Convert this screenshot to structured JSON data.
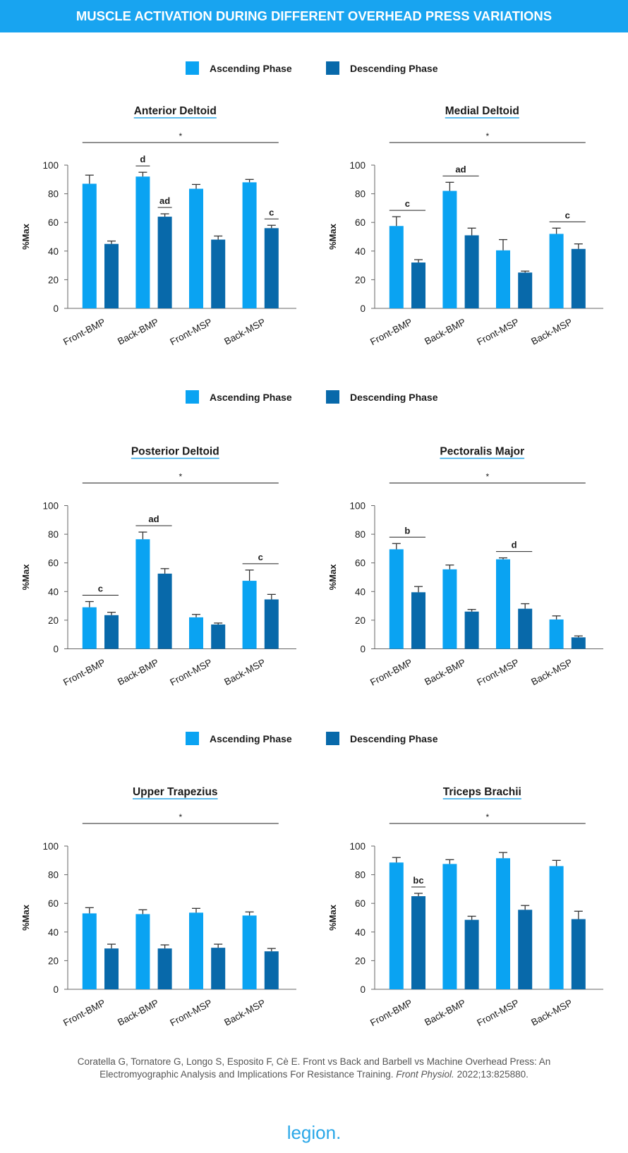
{
  "title": "MUSCLE ACTIVATION DURING DIFFERENT OVERHEAD PRESS VARIATIONS",
  "citation": {
    "lines": [
      "Coratella G, Tornatore G, Longo S, Esposito F, Cè E. Front vs Back and Barbell vs Machine Overhead Press: An",
      "Electromyographic Analysis and Implications For Resistance Training."
    ],
    "journal": "Front Physiol.",
    "details": "2022;13:825880."
  },
  "logo": "legion.",
  "chart_data": [
    {
      "type": "bar",
      "title": "Anterior Deltoid",
      "ylabel": "%Max",
      "significance": "*",
      "categories": [
        "Front-BMP",
        "Back-BMP",
        "Front-MSP",
        "Back-MSP"
      ],
      "series": [
        {
          "name": "Ascending Phase",
          "color": "#0aa3f2",
          "values": [
            87,
            92,
            83.5,
            88
          ],
          "errors": [
            6,
            3,
            3,
            2
          ]
        },
        {
          "name": "Descending Phase",
          "color": "#0869aa",
          "values": [
            45,
            64,
            48,
            56
          ],
          "errors": [
            2,
            2,
            2.5,
            2
          ]
        }
      ],
      "annotations": [
        {
          "text": "d",
          "category": "Back-BMP",
          "series": "Ascending Phase"
        },
        {
          "text": "ad",
          "category": "Back-BMP",
          "series": "Descending Phase"
        },
        {
          "text": "c",
          "category": "Back-MSP",
          "series": "Descending Phase"
        }
      ],
      "ylim": [
        0,
        100
      ],
      "yticks": [
        0,
        20,
        40,
        60,
        80,
        100
      ]
    },
    {
      "type": "bar",
      "title": "Medial Deltoid",
      "ylabel": "%Max",
      "significance": "*",
      "categories": [
        "Front-BMP",
        "Back-BMP",
        "Front-MSP",
        "Back-MSP"
      ],
      "series": [
        {
          "name": "Ascending Phase",
          "color": "#0aa3f2",
          "values": [
            57.5,
            82,
            40.5,
            52
          ],
          "errors": [
            6.5,
            6,
            7.5,
            4
          ]
        },
        {
          "name": "Descending Phase",
          "color": "#0869aa",
          "values": [
            32,
            51,
            25,
            41.5
          ],
          "errors": [
            2,
            5,
            1,
            3.5
          ]
        }
      ],
      "annotations": [
        {
          "text": "c",
          "category": "Front-BMP"
        },
        {
          "text": "ad",
          "category": "Back-BMP"
        },
        {
          "text": "c",
          "category": "Back-MSP"
        }
      ],
      "ylim": [
        0,
        100
      ],
      "yticks": [
        0,
        20,
        40,
        60,
        80,
        100
      ]
    },
    {
      "type": "bar",
      "title": "Posterior Deltoid",
      "ylabel": "%Max",
      "significance": "*",
      "categories": [
        "Front-BMP",
        "Back-BMP",
        "Front-MSP",
        "Back-MSP"
      ],
      "series": [
        {
          "name": "Ascending Phase",
          "color": "#0aa3f2",
          "values": [
            29,
            76.5,
            22,
            47.5
          ],
          "errors": [
            4,
            5,
            2,
            7.5
          ]
        },
        {
          "name": "Descending Phase",
          "color": "#0869aa",
          "values": [
            23.5,
            52.5,
            17,
            34.5
          ],
          "errors": [
            2,
            3.5,
            1,
            3.5
          ]
        }
      ],
      "annotations": [
        {
          "text": "c",
          "category": "Front-BMP"
        },
        {
          "text": "ad",
          "category": "Back-BMP"
        },
        {
          "text": "c",
          "category": "Back-MSP"
        }
      ],
      "ylim": [
        0,
        100
      ],
      "yticks": [
        0,
        20,
        40,
        60,
        80,
        100
      ]
    },
    {
      "type": "bar",
      "title": "Pectoralis Major",
      "ylabel": "%Max",
      "significance": "*",
      "categories": [
        "Front-BMP",
        "Back-BMP",
        "Front-MSP",
        "Back-MSP"
      ],
      "series": [
        {
          "name": "Ascending Phase",
          "color": "#0aa3f2",
          "values": [
            69.5,
            55.5,
            62.5,
            20.5
          ],
          "errors": [
            4,
            3,
            1,
            2.5
          ]
        },
        {
          "name": "Descending Phase",
          "color": "#0869aa",
          "values": [
            39.5,
            26,
            28,
            8
          ],
          "errors": [
            4,
            1.5,
            3.5,
            1
          ]
        }
      ],
      "annotations": [
        {
          "text": "b",
          "category": "Front-BMP"
        },
        {
          "text": "d",
          "category": "Front-MSP"
        }
      ],
      "ylim": [
        0,
        100
      ],
      "yticks": [
        0,
        20,
        40,
        60,
        80,
        100
      ]
    },
    {
      "type": "bar",
      "title": "Upper Trapezius",
      "ylabel": "%Max",
      "significance": "*",
      "categories": [
        "Front-BMP",
        "Back-BMP",
        "Front-MSP",
        "Back-MSP"
      ],
      "series": [
        {
          "name": "Ascending Phase",
          "color": "#0aa3f2",
          "values": [
            53,
            52.5,
            53.5,
            51.5
          ],
          "errors": [
            4,
            3,
            3,
            2.5
          ]
        },
        {
          "name": "Descending Phase",
          "color": "#0869aa",
          "values": [
            28.5,
            28.5,
            29,
            26.5
          ],
          "errors": [
            3,
            2.5,
            2.5,
            2
          ]
        }
      ],
      "annotations": [],
      "ylim": [
        0,
        100
      ],
      "yticks": [
        0,
        20,
        40,
        60,
        80,
        100
      ]
    },
    {
      "type": "bar",
      "title": "Triceps Brachii",
      "ylabel": "%Max",
      "significance": "*",
      "categories": [
        "Front-BMP",
        "Back-BMP",
        "Front-MSP",
        "Back-MSP"
      ],
      "series": [
        {
          "name": "Ascending Phase",
          "color": "#0aa3f2",
          "values": [
            88.5,
            87.5,
            91.5,
            86
          ],
          "errors": [
            3.5,
            3,
            4,
            4
          ]
        },
        {
          "name": "Descending Phase",
          "color": "#0869aa",
          "values": [
            65,
            48.5,
            55.5,
            49
          ],
          "errors": [
            2,
            2.5,
            3,
            5.5
          ]
        }
      ],
      "annotations": [
        {
          "text": "bc",
          "category": "Front-BMP",
          "series": "Descending Phase"
        }
      ],
      "ylim": [
        0,
        100
      ],
      "yticks": [
        0,
        20,
        40,
        60,
        80,
        100
      ]
    }
  ]
}
